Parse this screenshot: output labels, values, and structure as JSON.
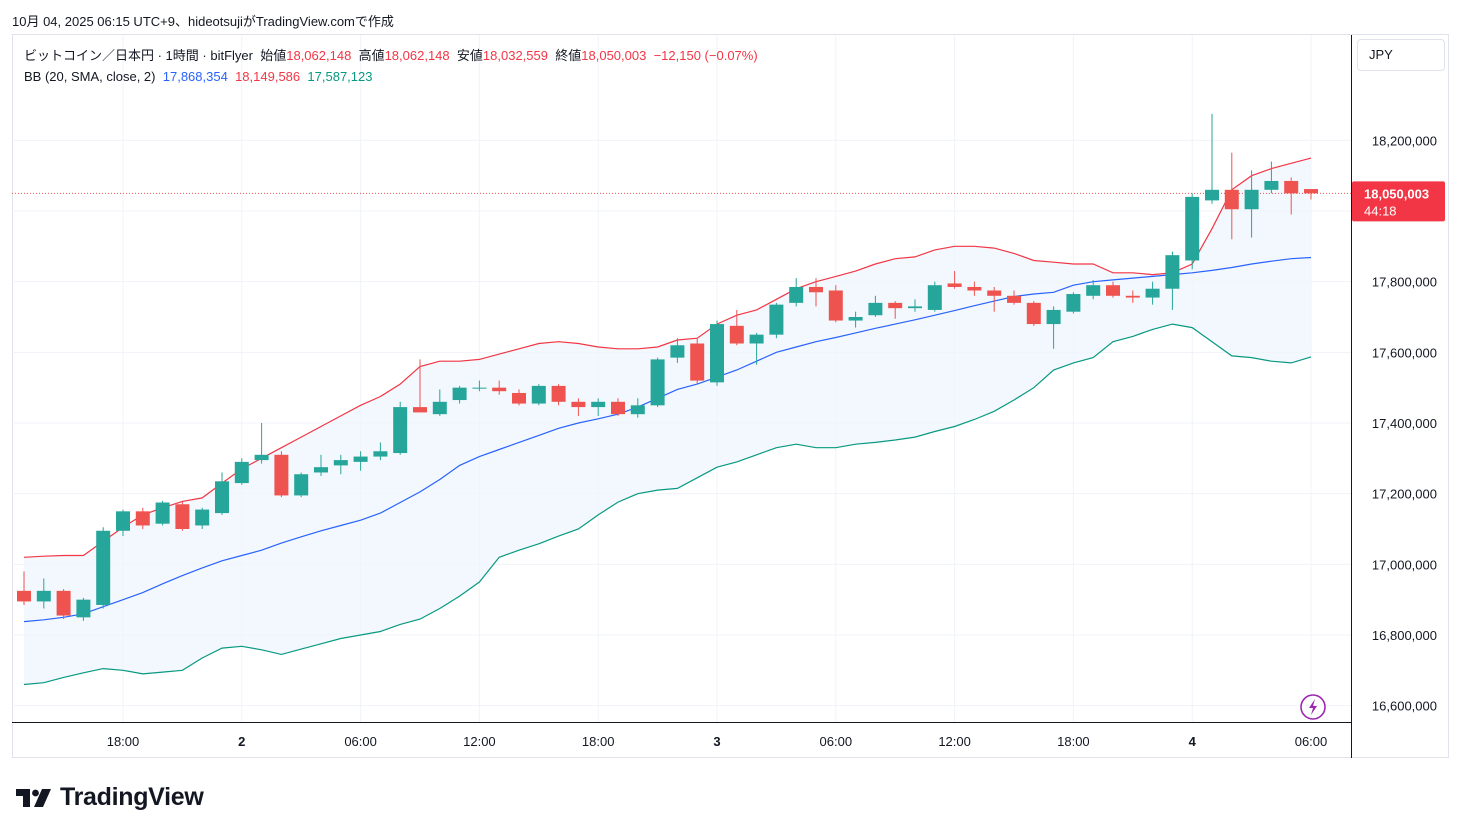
{
  "caption": "10月 04, 2025 06:15 UTC+9、hideotsujiがTradingView.comで作成",
  "legend": {
    "symbol": "ビットコイン／日本円 · 1時間 · bitFlyer",
    "open_label": "始値",
    "open": "18,062,148",
    "high_label": "高値",
    "high": "18,062,148",
    "low_label": "安値",
    "low": "18,032,559",
    "close_label": "終値",
    "close": "18,050,003",
    "change": "−12,150 (−0.07%)",
    "bb_label": "BB (20, SMA, close, 2)",
    "bb_basis": "17,868,354",
    "bb_upper": "18,149,586",
    "bb_lower": "17,587,123"
  },
  "currency_button": "JPY",
  "price_badge": {
    "price": "18,050,003",
    "countdown": "44:18"
  },
  "logo_text": "TradingView",
  "colors": {
    "up": "#26a69a",
    "down": "#ef5350",
    "bb_upper": "#f23645",
    "bb_basis": "#2962ff",
    "bb_lower": "#089981",
    "bb_fill": "#eef5fc",
    "grid": "#f0f3fa"
  },
  "chart_data": {
    "type": "candlestick",
    "timeframe": "1h",
    "ylim": [
      16500000,
      18350000
    ],
    "y_ticks": [
      16600000,
      16800000,
      17000000,
      17200000,
      17400000,
      17600000,
      17800000,
      18000000,
      18200000
    ],
    "y_tick_labels": [
      "16,600,000",
      "16,800,000",
      "17,000,000",
      "17,200,000",
      "17,400,000",
      "17,600,000",
      "17,800,000",
      "18,000,000",
      "18,200,000"
    ],
    "x_ticks": [
      {
        "index": 5,
        "label": "18:00",
        "bold": false
      },
      {
        "index": 11,
        "label": "2",
        "bold": true
      },
      {
        "index": 17,
        "label": "06:00",
        "bold": false
      },
      {
        "index": 23,
        "label": "12:00",
        "bold": false
      },
      {
        "index": 29,
        "label": "18:00",
        "bold": false
      },
      {
        "index": 35,
        "label": "3",
        "bold": true
      },
      {
        "index": 41,
        "label": "06:00",
        "bold": false
      },
      {
        "index": 47,
        "label": "12:00",
        "bold": false
      },
      {
        "index": 53,
        "label": "18:00",
        "bold": false
      },
      {
        "index": 59,
        "label": "4",
        "bold": true
      },
      {
        "index": 65,
        "label": "06:00",
        "bold": false
      }
    ],
    "candles": [
      [
        16925000,
        16980000,
        16885000,
        16895000
      ],
      [
        16895000,
        16960000,
        16875000,
        16925000
      ],
      [
        16925000,
        16930000,
        16845000,
        16855000
      ],
      [
        16850000,
        16905000,
        16840000,
        16900000
      ],
      [
        16885000,
        17105000,
        16875000,
        17095000
      ],
      [
        17095000,
        17155000,
        17080000,
        17150000
      ],
      [
        17150000,
        17160000,
        17100000,
        17110000
      ],
      [
        17115000,
        17180000,
        17110000,
        17175000
      ],
      [
        17170000,
        17180000,
        17095000,
        17100000
      ],
      [
        17110000,
        17160000,
        17100000,
        17155000
      ],
      [
        17145000,
        17260000,
        17140000,
        17235000
      ],
      [
        17230000,
        17300000,
        17225000,
        17290000
      ],
      [
        17295000,
        17400000,
        17285000,
        17310000
      ],
      [
        17310000,
        17320000,
        17190000,
        17195000
      ],
      [
        17195000,
        17260000,
        17190000,
        17255000
      ],
      [
        17260000,
        17310000,
        17250000,
        17275000
      ],
      [
        17280000,
        17310000,
        17255000,
        17295000
      ],
      [
        17290000,
        17320000,
        17265000,
        17305000
      ],
      [
        17305000,
        17345000,
        17295000,
        17320000
      ],
      [
        17315000,
        17460000,
        17310000,
        17445000
      ],
      [
        17445000,
        17580000,
        17430000,
        17430000
      ],
      [
        17425000,
        17495000,
        17420000,
        17460000
      ],
      [
        17465000,
        17505000,
        17455000,
        17500000
      ],
      [
        17500000,
        17520000,
        17490000,
        17500000
      ],
      [
        17500000,
        17520000,
        17480000,
        17490000
      ],
      [
        17485000,
        17495000,
        17450000,
        17455000
      ],
      [
        17455000,
        17510000,
        17450000,
        17505000
      ],
      [
        17505000,
        17510000,
        17450000,
        17460000
      ],
      [
        17460000,
        17470000,
        17420000,
        17445000
      ],
      [
        17445000,
        17470000,
        17420000,
        17460000
      ],
      [
        17460000,
        17470000,
        17420000,
        17425000
      ],
      [
        17425000,
        17470000,
        17415000,
        17450000
      ],
      [
        17450000,
        17585000,
        17445000,
        17580000
      ],
      [
        17585000,
        17640000,
        17570000,
        17620000
      ],
      [
        17625000,
        17640000,
        17510000,
        17520000
      ],
      [
        17515000,
        17690000,
        17505000,
        17680000
      ],
      [
        17675000,
        17720000,
        17620000,
        17625000
      ],
      [
        17625000,
        17655000,
        17565000,
        17650000
      ],
      [
        17650000,
        17740000,
        17640000,
        17735000
      ],
      [
        17740000,
        17810000,
        17730000,
        17785000
      ],
      [
        17785000,
        17810000,
        17730000,
        17770000
      ],
      [
        17775000,
        17790000,
        17685000,
        17690000
      ],
      [
        17690000,
        17715000,
        17670000,
        17700000
      ],
      [
        17705000,
        17760000,
        17700000,
        17740000
      ],
      [
        17740000,
        17745000,
        17695000,
        17725000
      ],
      [
        17725000,
        17750000,
        17715000,
        17730000
      ],
      [
        17720000,
        17800000,
        17715000,
        17790000
      ],
      [
        17795000,
        17830000,
        17780000,
        17785000
      ],
      [
        17785000,
        17800000,
        17760000,
        17775000
      ],
      [
        17775000,
        17785000,
        17715000,
        17760000
      ],
      [
        17760000,
        17775000,
        17735000,
        17740000
      ],
      [
        17740000,
        17745000,
        17675000,
        17680000
      ],
      [
        17680000,
        17730000,
        17610000,
        17720000
      ],
      [
        17715000,
        17770000,
        17710000,
        17765000
      ],
      [
        17760000,
        17805000,
        17750000,
        17790000
      ],
      [
        17790000,
        17800000,
        17755000,
        17760000
      ],
      [
        17760000,
        17775000,
        17740000,
        17755000
      ],
      [
        17755000,
        17800000,
        17735000,
        17780000
      ],
      [
        17780000,
        17885000,
        17720000,
        17875000
      ],
      [
        17860000,
        18050000,
        17835000,
        18040000
      ],
      [
        18030000,
        18275000,
        18020000,
        18060000
      ],
      [
        18060000,
        18165000,
        17920000,
        18005000
      ],
      [
        18005000,
        18115000,
        17925000,
        18060000
      ],
      [
        18060000,
        18140000,
        18050000,
        18085000
      ],
      [
        18085000,
        18095000,
        17990000,
        18050000
      ],
      [
        18062148,
        18062148,
        18032559,
        18050003
      ]
    ],
    "bb_upper": [
      17020000,
      17023000,
      17025000,
      17025000,
      17065000,
      17105000,
      17140000,
      17160000,
      17178000,
      17188000,
      17230000,
      17270000,
      17300000,
      17330000,
      17360000,
      17390000,
      17420000,
      17450000,
      17475000,
      17510000,
      17560000,
      17575000,
      17575000,
      17580000,
      17595000,
      17610000,
      17625000,
      17630000,
      17625000,
      17615000,
      17610000,
      17610000,
      17615000,
      17635000,
      17640000,
      17680000,
      17705000,
      17720000,
      17750000,
      17780000,
      17800000,
      17815000,
      17830000,
      17850000,
      17865000,
      17870000,
      17890000,
      17900000,
      17900000,
      17895000,
      17880000,
      17860000,
      17855000,
      17850000,
      17850000,
      17825000,
      17825000,
      17820000,
      17825000,
      17850000,
      17950000,
      18060000,
      18100000,
      18120000,
      18135000,
      18149586
    ],
    "bb_basis": [
      16838000,
      16843000,
      16850000,
      16860000,
      16880000,
      16900000,
      16920000,
      16945000,
      16968000,
      16990000,
      17010000,
      17025000,
      17040000,
      17060000,
      17078000,
      17095000,
      17110000,
      17125000,
      17145000,
      17175000,
      17205000,
      17240000,
      17280000,
      17305000,
      17325000,
      17345000,
      17365000,
      17385000,
      17400000,
      17412000,
      17425000,
      17445000,
      17470000,
      17495000,
      17510000,
      17530000,
      17550000,
      17575000,
      17600000,
      17615000,
      17630000,
      17642000,
      17655000,
      17668000,
      17680000,
      17692000,
      17705000,
      17718000,
      17732000,
      17745000,
      17758000,
      17765000,
      17770000,
      17790000,
      17800000,
      17805000,
      17810000,
      17815000,
      17820000,
      17825000,
      17832000,
      17840000,
      17850000,
      17858000,
      17865000,
      17868354
    ],
    "bb_lower": [
      16660000,
      16665000,
      16680000,
      16693000,
      16705000,
      16700000,
      16690000,
      16695000,
      16700000,
      16735000,
      16763000,
      16768000,
      16758000,
      16745000,
      16760000,
      16775000,
      16790000,
      16800000,
      16810000,
      16830000,
      16845000,
      16875000,
      16910000,
      16950000,
      17020000,
      17040000,
      17058000,
      17080000,
      17100000,
      17140000,
      17176000,
      17200000,
      17210000,
      17215000,
      17245000,
      17275000,
      17290000,
      17310000,
      17330000,
      17340000,
      17330000,
      17330000,
      17340000,
      17345000,
      17352000,
      17360000,
      17376000,
      17390000,
      17410000,
      17433000,
      17465000,
      17500000,
      17550000,
      17570000,
      17585000,
      17630000,
      17645000,
      17665000,
      17680000,
      17670000,
      17630000,
      17590000,
      17585000,
      17575000,
      17570000,
      17587123
    ],
    "last_price": 18050003
  }
}
